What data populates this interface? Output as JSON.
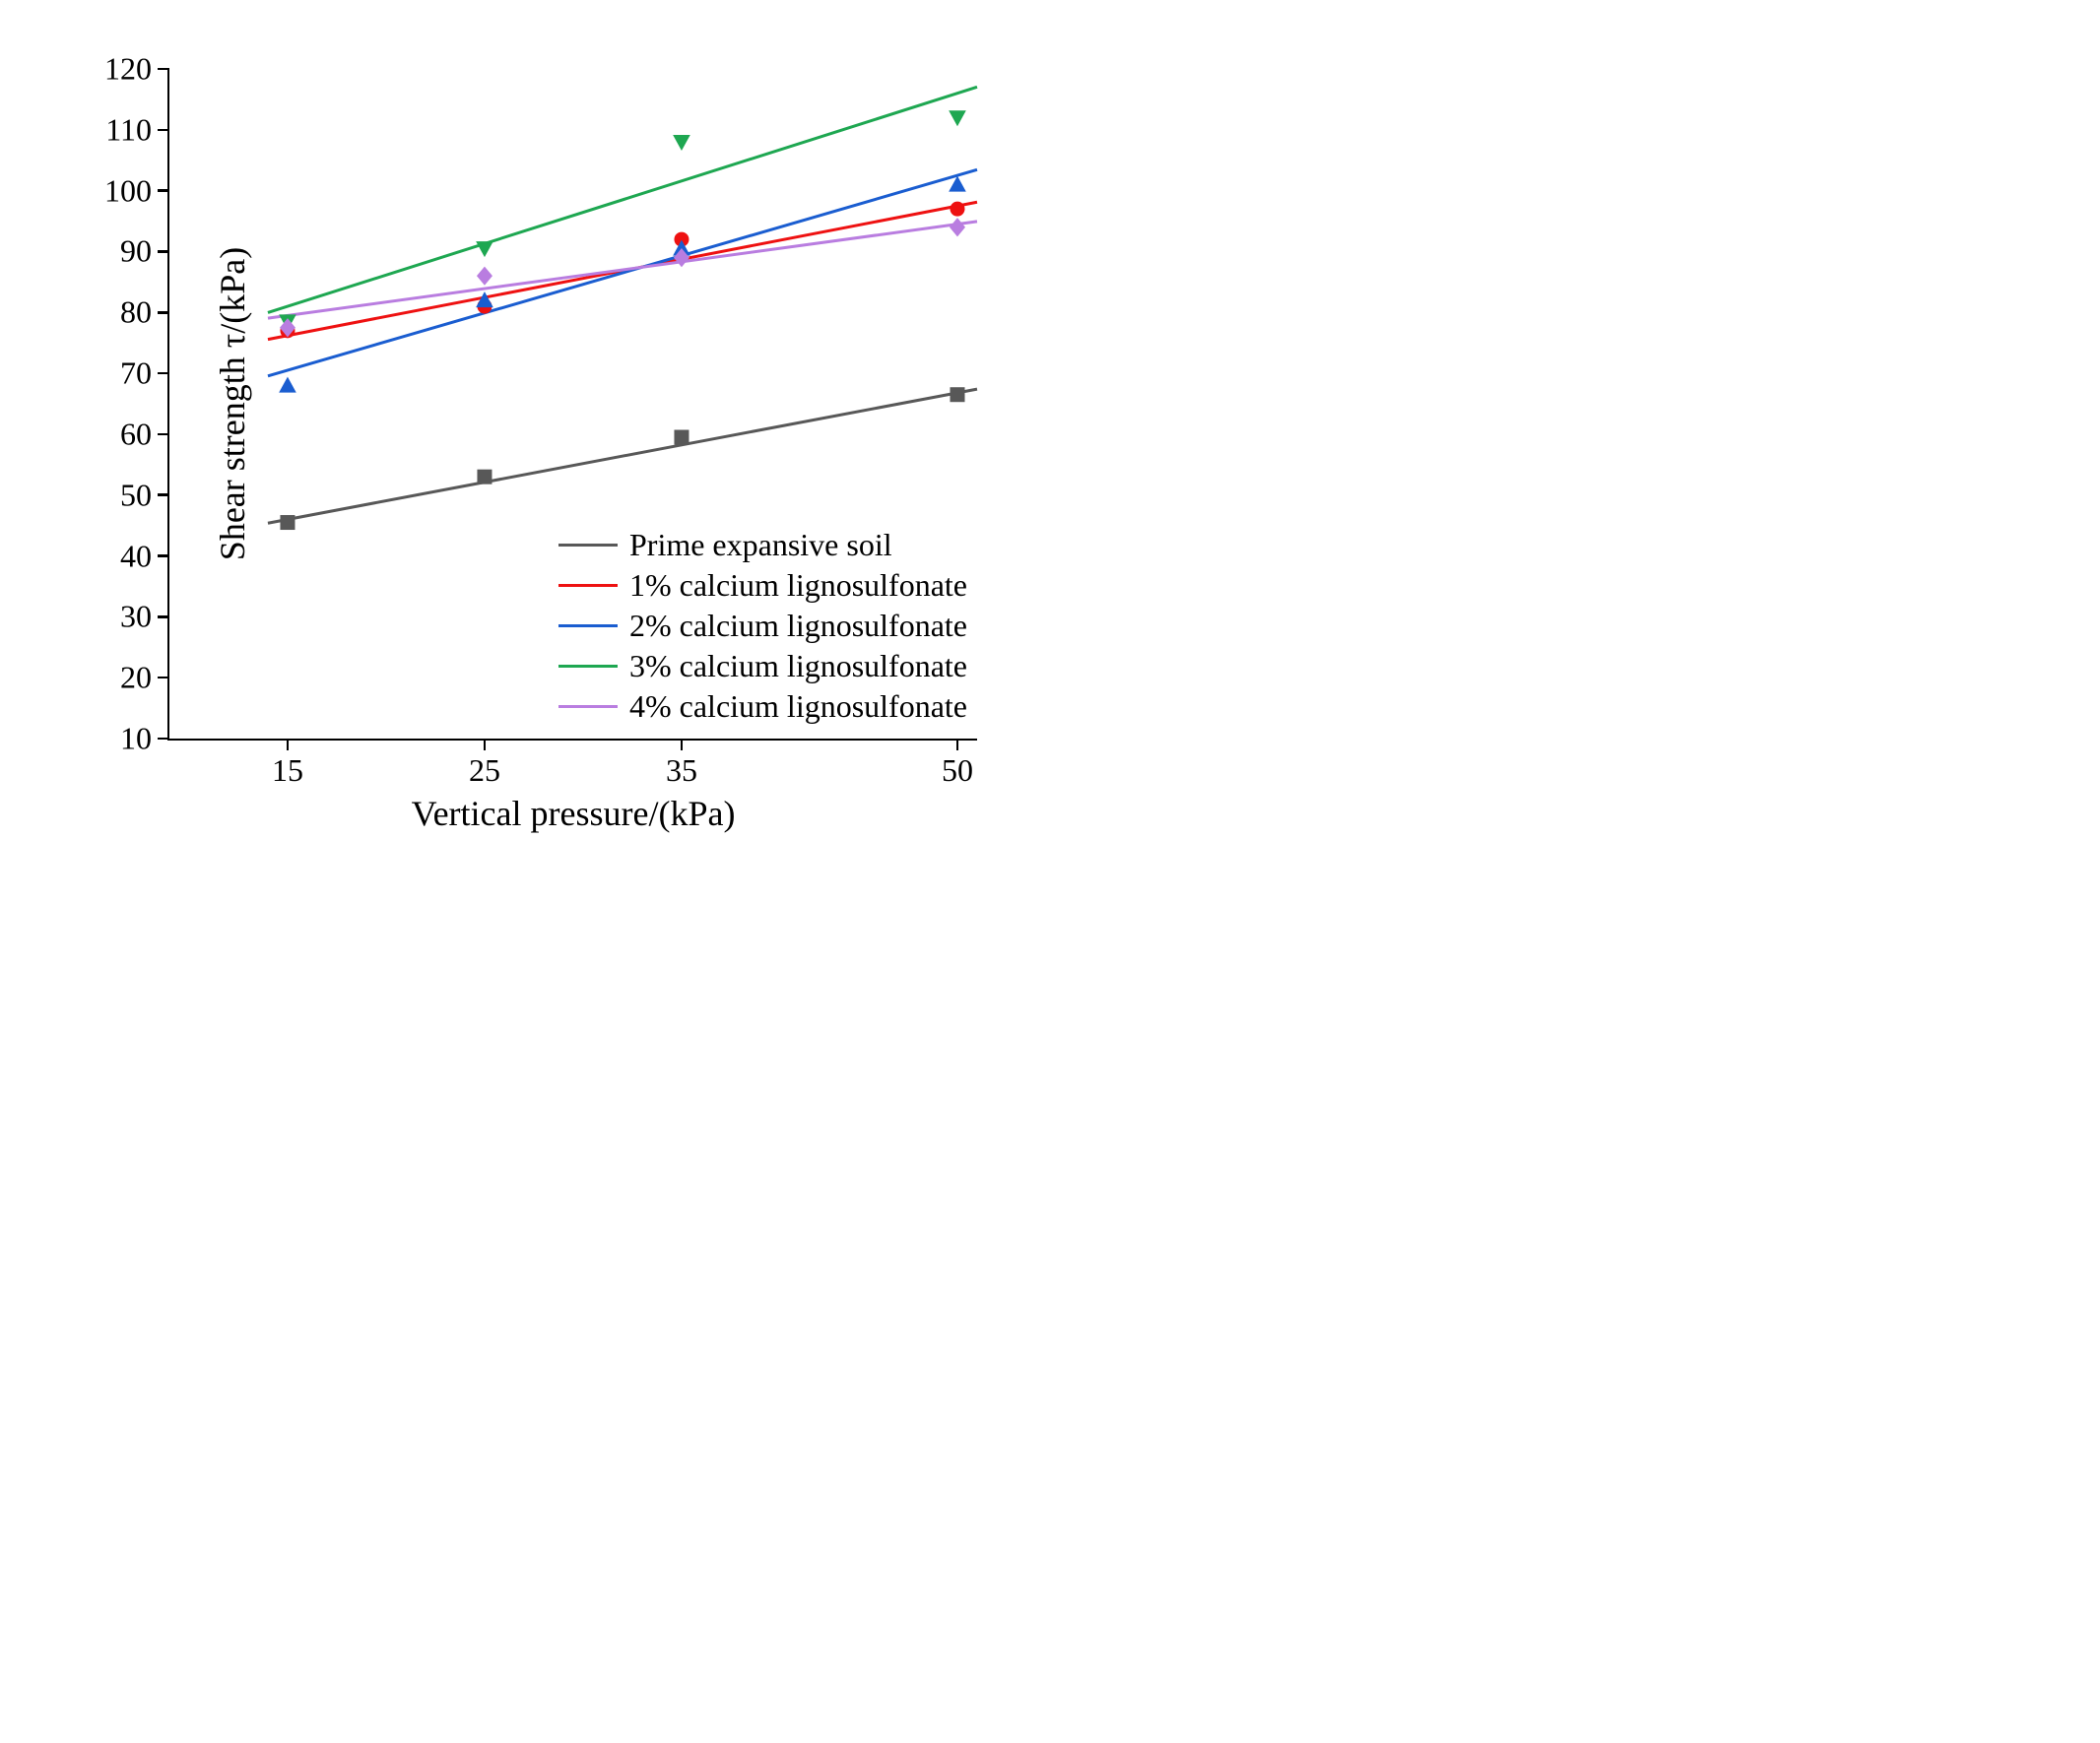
{
  "chart": {
    "type": "scatter_with_trend",
    "title": null,
    "background_color": "#ffffff",
    "axis_color": "#000000",
    "axis_width": 2.5,
    "tick_length": 12,
    "tick_width": 2.5,
    "y_axis": {
      "label": "Shear strength τ/(kPa)",
      "ticks": [
        10,
        20,
        30,
        40,
        50,
        60,
        70,
        80,
        90,
        100,
        110,
        120
      ],
      "min": 10,
      "max": 120,
      "fontsize": 32,
      "title_fontsize": 36
    },
    "x_axis": {
      "label": "Vertical pressure/(kPa)",
      "categories": [
        "15",
        "25",
        "35",
        "50"
      ],
      "positions": [
        0.1463,
        0.3902,
        0.6341,
        0.9756
      ],
      "fontsize": 32,
      "title_fontsize": 36
    },
    "series": [
      {
        "name": "Prime expansive soil",
        "color": "#585858",
        "marker": "square",
        "marker_size": 15,
        "line_width": 3,
        "data_y": [
          45.5,
          53,
          59.5,
          66.5
        ],
        "trend_y_start": 46,
        "trend_y_end": 66.8
      },
      {
        "name": "1% calcium lignosulfonate",
        "color": "#ee1111",
        "marker": "circle",
        "marker_size": 15,
        "line_width": 3,
        "data_y": [
          77,
          81,
          92,
          97
        ],
        "trend_y_start": 76.2,
        "trend_y_end": 97.5
      },
      {
        "name": "2% calcium lignosulfonate",
        "color": "#1a5dd0",
        "marker": "triangle_up",
        "marker_size": 16,
        "line_width": 3,
        "data_y": [
          68,
          82,
          90.5,
          101
        ],
        "trend_y_start": 70.5,
        "trend_y_end": 102.5
      },
      {
        "name": "3% calcium lignosulfonate",
        "color": "#1ea751",
        "marker": "triangle_down",
        "marker_size": 16,
        "line_width": 3,
        "data_y": [
          78.5,
          90.5,
          108,
          112
        ],
        "trend_y_start": 81,
        "trend_y_end": 116
      },
      {
        "name": "4% calcium lignosulfonate",
        "color": "#b97de0",
        "marker": "diamond",
        "marker_size": 16,
        "line_width": 3,
        "data_y": [
          77.5,
          86,
          89,
          94
        ],
        "trend_y_start": 79.5,
        "trend_y_end": 94.5
      }
    ],
    "legend": {
      "position": "lower_right",
      "fontsize": 32,
      "line_width": 60
    }
  }
}
